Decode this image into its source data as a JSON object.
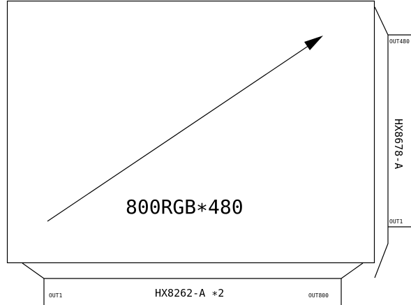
{
  "panel": {
    "resolution_label": "800RGB∗480"
  },
  "source_driver": {
    "label": "HX8262-A ∗2",
    "out_first": "OUT1",
    "out_last": "OUT800"
  },
  "gate_driver": {
    "label": "HX8678-A",
    "out_first": "OUT1",
    "out_last": "OUT480"
  }
}
